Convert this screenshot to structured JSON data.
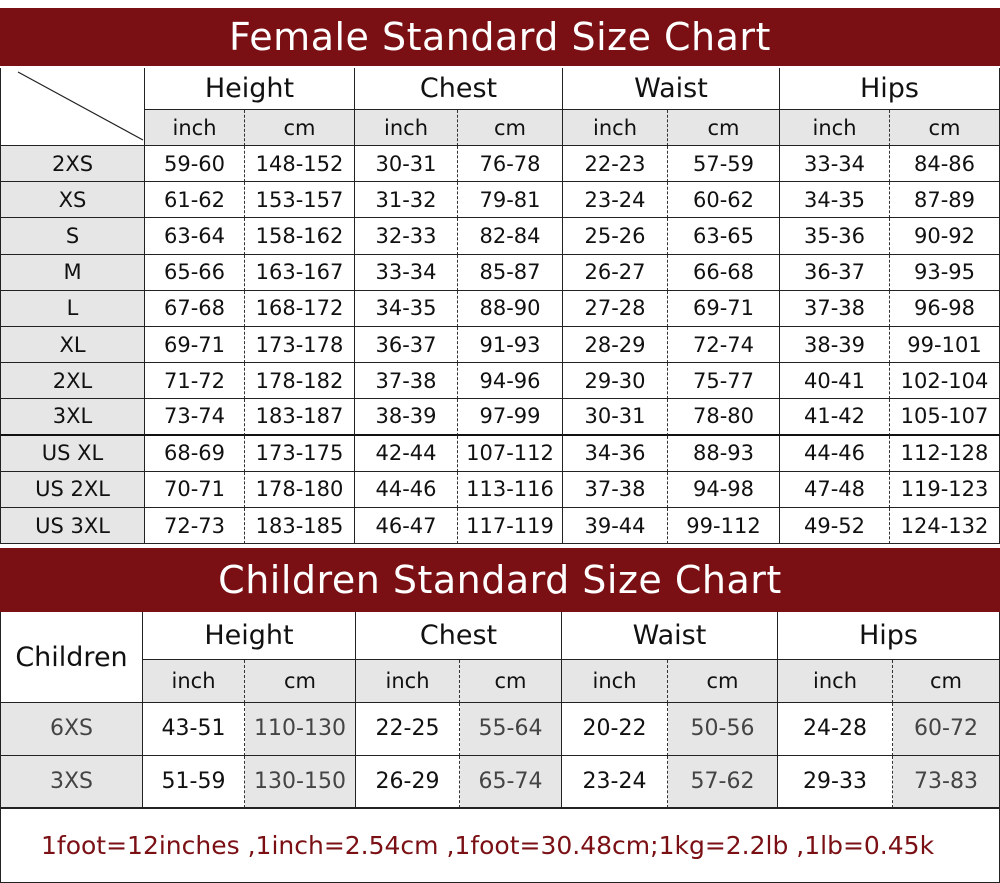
{
  "female": {
    "title": "Female Standard Size Chart",
    "groups": [
      "Height",
      "Chest",
      "Waist",
      "Hips"
    ],
    "units": [
      "inch",
      "cm",
      "inch",
      "cm",
      "inch",
      "cm",
      "inch",
      "cm"
    ],
    "rows": [
      [
        "2XS",
        "59-60",
        "148-152",
        "30-31",
        "76-78",
        "22-23",
        "57-59",
        "33-34",
        "84-86"
      ],
      [
        "XS",
        "61-62",
        "153-157",
        "31-32",
        "79-81",
        "23-24",
        "60-62",
        "34-35",
        "87-89"
      ],
      [
        "S",
        "63-64",
        "158-162",
        "32-33",
        "82-84",
        "25-26",
        "63-65",
        "35-36",
        "90-92"
      ],
      [
        "M",
        "65-66",
        "163-167",
        "33-34",
        "85-87",
        "26-27",
        "66-68",
        "36-37",
        "93-95"
      ],
      [
        "L",
        "67-68",
        "168-172",
        "34-35",
        "88-90",
        "27-28",
        "69-71",
        "37-38",
        "96-98"
      ],
      [
        "XL",
        "69-71",
        "173-178",
        "36-37",
        "91-93",
        "28-29",
        "72-74",
        "38-39",
        "99-101"
      ],
      [
        "2XL",
        "71-72",
        "178-182",
        "37-38",
        "94-96",
        "29-30",
        "75-77",
        "40-41",
        "102-104"
      ],
      [
        "3XL",
        "73-74",
        "183-187",
        "38-39",
        "97-99",
        "30-31",
        "78-80",
        "41-42",
        "105-107"
      ],
      [
        "US XL",
        "68-69",
        "173-175",
        "42-44",
        "107-112",
        "34-36",
        "88-93",
        "44-46",
        "112-128"
      ],
      [
        "US 2XL",
        "70-71",
        "178-180",
        "44-46",
        "113-116",
        "37-38",
        "94-98",
        "47-48",
        "119-123"
      ],
      [
        "US 3XL",
        "72-73",
        "183-185",
        "46-47",
        "117-119",
        "39-44",
        "99-112",
        "49-52",
        "124-132"
      ]
    ]
  },
  "children": {
    "title": "Children Standard Size Chart",
    "corner": "Children",
    "groups": [
      "Height",
      "Chest",
      "Waist",
      "Hips"
    ],
    "units": [
      "inch",
      "cm",
      "inch",
      "cm",
      "inch",
      "cm",
      "inch",
      "cm"
    ],
    "rows": [
      [
        "6XS",
        "43-51",
        "110-130",
        "22-25",
        "55-64",
        "20-22",
        "50-56",
        "24-28",
        "60-72"
      ],
      [
        "3XS",
        "51-59",
        "130-150",
        "26-29",
        "65-74",
        "23-24",
        "57-62",
        "29-33",
        "73-83"
      ]
    ]
  },
  "note": "1foot=12inches ,1inch=2.54cm ,1foot=30.48cm;1kg=2.2lb ,1lb=0.45k"
}
